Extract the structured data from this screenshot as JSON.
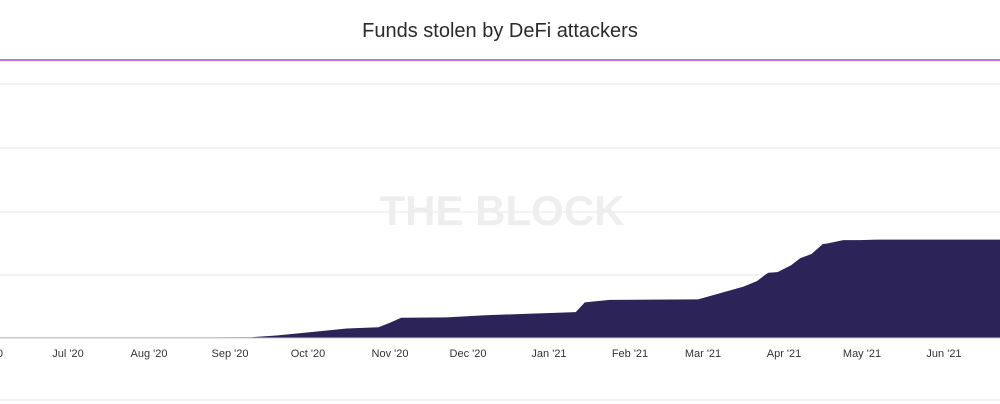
{
  "chart_data": {
    "type": "area",
    "title": "Funds stolen by DeFi attackers",
    "xlabel": "",
    "ylabel": "",
    "watermark": "THE BLOCK",
    "x_tick_labels": [
      "0",
      "Jul '20",
      "Aug '20",
      "Sep '20",
      "Oct '20",
      "Nov '20",
      "Dec '20",
      "Jan '21",
      "Feb '21",
      "Mar '21",
      "Apr '21",
      "May '21",
      "Jun '21"
    ],
    "grid": true,
    "legend": "none",
    "colors": {
      "area": "#2c2458",
      "top_line": "#a020c0",
      "grid": "#e6e6e6",
      "axis": "#cccccc"
    },
    "series": [
      {
        "x": [
          "2020-06-01",
          "2020-07-01",
          "2020-08-01",
          "2020-09-01",
          "2020-09-20",
          "2020-10-01",
          "2020-10-20",
          "2020-11-01",
          "2020-11-15",
          "2020-11-20",
          "2020-11-25",
          "2020-12-15",
          "2021-01-01",
          "2021-01-20",
          "2021-02-10",
          "2021-02-14",
          "2021-02-25",
          "2021-03-15",
          "2021-04-05",
          "2021-04-25",
          "2021-05-01",
          "2021-05-05",
          "2021-05-06",
          "2021-05-10",
          "2021-05-16",
          "2021-05-20",
          "2021-05-25",
          "2021-05-30",
          "2021-06-01",
          "2021-06-08",
          "2021-06-15",
          "2021-06-23"
        ],
        "values": [
          0.2,
          0.2,
          0.2,
          0.2,
          0.3,
          0.9,
          2.4,
          3.4,
          3.9,
          5.5,
          7.3,
          7.4,
          8.2,
          8.7,
          9.3,
          12.8,
          13.7,
          13.8,
          13.9,
          18.5,
          20.5,
          23.0,
          23.5,
          23.7,
          26.2,
          28.7,
          30.2,
          33.8,
          34.0,
          35.2,
          35.2,
          35.4
        ]
      }
    ]
  }
}
